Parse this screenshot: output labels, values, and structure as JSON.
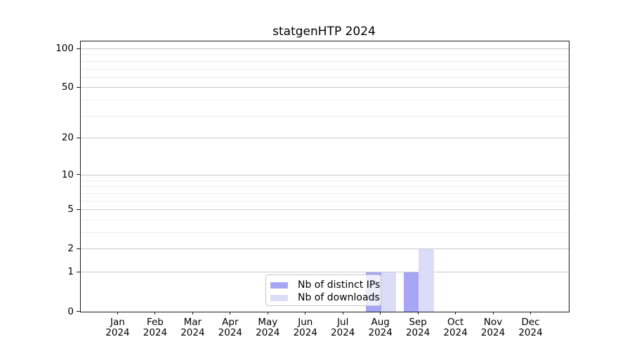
{
  "chart_data": {
    "type": "bar",
    "title": "statgenHTP 2024",
    "x": {
      "months": [
        "Jan",
        "Feb",
        "Mar",
        "Apr",
        "May",
        "Jun",
        "Jul",
        "Aug",
        "Sep",
        "Oct",
        "Nov",
        "Dec"
      ],
      "year": "2024"
    },
    "series": [
      {
        "name": "Nb of distinct IPs",
        "color": "#a6a6f5",
        "values": [
          0,
          0,
          0,
          0,
          0,
          0,
          0,
          1,
          1,
          0,
          0,
          0
        ]
      },
      {
        "name": "Nb of downloads",
        "color": "#dcdcf9",
        "values": [
          0,
          0,
          0,
          0,
          0,
          0,
          0,
          1,
          2,
          0,
          0,
          0
        ]
      }
    ],
    "y_axis": {
      "scale": "log1p",
      "major_ticks": [
        0,
        1,
        2,
        5,
        10,
        20,
        50,
        100
      ],
      "minor_gridlines": [
        3,
        4,
        6,
        7,
        8,
        9,
        30,
        40,
        60,
        70,
        80,
        90
      ],
      "ylim": [
        0,
        114
      ]
    },
    "legend_position": "lower-center",
    "grid": true,
    "colors": {
      "major_grid": "#c8c8c8",
      "minor_grid": "#ececec",
      "spine": "#1a1a1a",
      "text": "#000000",
      "background": "#ffffff"
    }
  }
}
